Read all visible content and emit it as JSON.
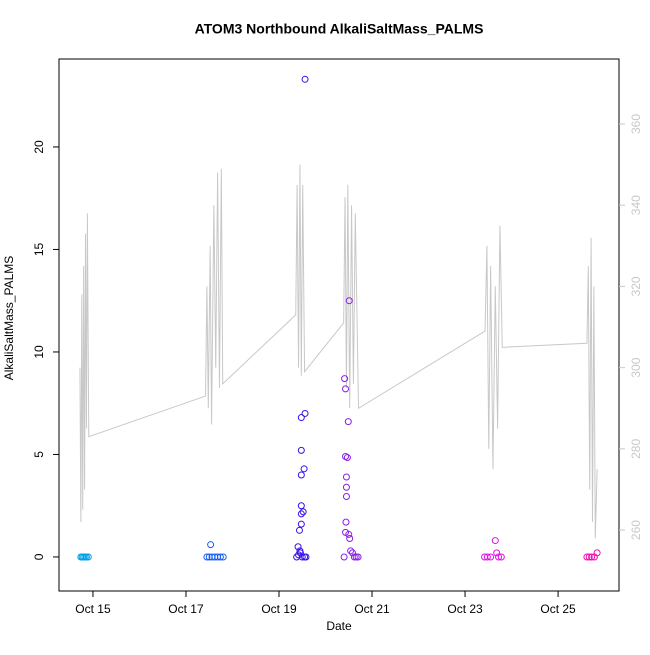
{
  "chart_data": {
    "type": "scatter",
    "title": "ATOM3 Northbound AlkaliSaltMass_PALMS",
    "x_label": "Date",
    "y_label": "AlkaliSaltMass_PALMS",
    "xlim": [
      14.27,
      26.31
    ],
    "xticks": [
      {
        "value": 15,
        "label": "Oct 15"
      },
      {
        "value": 17,
        "label": "Oct 17"
      },
      {
        "value": 19,
        "label": "Oct 19"
      },
      {
        "value": 21,
        "label": "Oct 21"
      },
      {
        "value": 23,
        "label": "Oct 23"
      },
      {
        "value": 25,
        "label": "Oct 25"
      }
    ],
    "ylim": [
      -1.66,
      24.29
    ],
    "yticks": [
      0,
      5,
      10,
      15,
      20
    ],
    "y2lim": [
      245,
      376
    ],
    "y2ticks": [
      260,
      280,
      300,
      320,
      340,
      360
    ],
    "y2_color": "#c8c8c8",
    "series": [
      {
        "type": "line",
        "axis": "y2",
        "color": "#c8c8c8",
        "x": [
          14.72,
          14.74,
          14.76,
          14.78,
          14.8,
          14.82,
          14.84,
          14.86,
          14.88,
          14.91,
          17.42,
          17.45,
          17.48,
          17.52,
          17.55,
          17.6,
          17.64,
          17.68,
          17.72,
          17.76,
          17.79,
          19.36,
          19.39,
          19.42,
          19.45,
          19.48,
          19.51,
          19.55,
          20.39,
          20.42,
          20.45,
          20.48,
          20.52,
          20.56,
          20.6,
          20.64,
          20.71,
          23.43,
          23.47,
          23.51,
          23.55,
          23.6,
          23.65,
          23.7,
          23.75,
          23.8,
          25.62,
          25.65,
          25.68,
          25.71,
          25.74,
          25.77,
          25.8,
          25.84
        ],
        "values": [
          300,
          262,
          318,
          265,
          325,
          270,
          333,
          285,
          338,
          283,
          293,
          320,
          290,
          330,
          286,
          340,
          300,
          348,
          295,
          349,
          296,
          313,
          345,
          300,
          350,
          298,
          345,
          299,
          311,
          342,
          295,
          345,
          290,
          340,
          296,
          338,
          290,
          309,
          330,
          280,
          325,
          275,
          320,
          285,
          335,
          305,
          306,
          325,
          270,
          332,
          262,
          320,
          258,
          275
        ]
      },
      {
        "type": "scatter",
        "color": "#00a0e8",
        "x": [
          14.74,
          14.77,
          14.8,
          14.83,
          14.86,
          14.9
        ],
        "values": [
          0,
          0,
          0,
          0,
          0,
          0
        ]
      },
      {
        "type": "scatter",
        "color": "#1a5ff0",
        "x": [
          17.45,
          17.5,
          17.53,
          17.56,
          17.62,
          17.68,
          17.74,
          17.8
        ],
        "values": [
          0,
          0,
          0.6,
          0,
          0,
          0,
          0,
          0
        ]
      },
      {
        "type": "scatter",
        "color": "#3a10e8",
        "x": [
          19.38,
          19.42,
          19.45,
          19.48,
          19.48,
          19.56,
          19.56,
          19.48,
          19.54,
          19.48,
          19.48,
          19.52,
          19.48,
          19.44,
          19.41,
          19.46,
          19.5,
          19.55,
          19.58
        ],
        "values": [
          0,
          0.1,
          0.3,
          6.8,
          5.2,
          23.3,
          7.0,
          4.0,
          4.3,
          2.5,
          1.6,
          2.2,
          2.1,
          1.3,
          0.5,
          0.2,
          0,
          0,
          0
        ]
      },
      {
        "type": "scatter",
        "color": "#8a1ee8",
        "x": [
          20.4,
          20.41,
          20.43,
          20.51,
          20.49,
          20.43,
          20.47,
          20.45,
          20.45,
          20.45,
          20.44,
          20.43,
          20.5,
          20.52,
          20.54,
          20.58,
          20.62,
          20.66,
          20.7
        ],
        "values": [
          0,
          8.7,
          8.2,
          12.5,
          6.6,
          4.9,
          4.85,
          3.9,
          3.4,
          2.95,
          1.7,
          1.2,
          1.1,
          0.9,
          0.3,
          0.2,
          0,
          0,
          0
        ]
      },
      {
        "type": "scatter",
        "color": "#e010e8",
        "x": [
          23.42,
          23.48,
          23.55,
          23.65,
          23.68,
          23.72,
          23.78
        ],
        "values": [
          0,
          0,
          0,
          0.8,
          0.2,
          0,
          0
        ]
      },
      {
        "type": "scatter",
        "color": "#f010b0",
        "x": [
          25.62,
          25.67,
          25.72,
          25.78,
          25.84
        ],
        "values": [
          0,
          0,
          0,
          0,
          0.2
        ]
      }
    ]
  }
}
